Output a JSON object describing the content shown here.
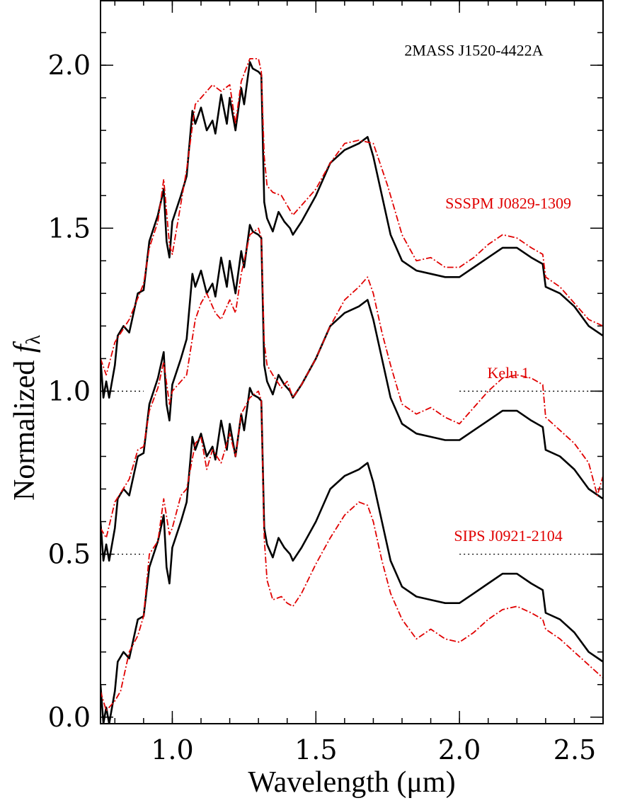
{
  "chart_data": {
    "type": "line",
    "title": "",
    "xlabel": "Wavelength (μm)",
    "ylabel_main": "Normalized ",
    "ylabel_f": "f",
    "ylabel_sub": "λ",
    "xlim": [
      0.75,
      2.5
    ],
    "ylim": [
      -0.02,
      2.2
    ],
    "grid": false,
    "x_ticks": [
      1.0,
      1.5,
      2.0,
      2.5
    ],
    "x_tick_labels": [
      "1.0",
      "1.5",
      "2.0",
      "2.5"
    ],
    "y_ticks": [
      0.0,
      0.5,
      1.0,
      1.5,
      2.0
    ],
    "y_tick_labels": [
      "0.0",
      "0.5",
      "1.0",
      "1.5",
      "2.0"
    ],
    "x_minor_step": 0.1,
    "y_minor_step": 0.1,
    "annotations": [
      {
        "text": "2MASS J1520-4422A",
        "x": 2.05,
        "y": 2.03,
        "color": "#000000"
      },
      {
        "text": "SSSPM J0829-1309",
        "x": 2.17,
        "y": 1.56,
        "color": "#e00000"
      },
      {
        "text": "Kelu 1",
        "x": 2.17,
        "y": 1.04,
        "color": "#e00000"
      },
      {
        "text": "SIPS J0921-2104",
        "x": 2.17,
        "y": 0.54,
        "color": "#e00000"
      }
    ],
    "baselines": [
      {
        "y": 1.0,
        "segments": [
          [
            0.75,
            0.9
          ],
          [
            2.0,
            2.5
          ]
        ]
      },
      {
        "y": 0.5,
        "segments": [
          [
            0.75,
            0.9
          ],
          [
            2.0,
            2.5
          ]
        ]
      },
      {
        "y": -0.02,
        "segments": [
          [
            0.75,
            2.5
          ]
        ]
      }
    ],
    "series": [
      {
        "color": "#000000",
        "style": "solid",
        "x": [
          0.75,
          0.76,
          0.77,
          0.78,
          0.8,
          0.81,
          0.83,
          0.85,
          0.88,
          0.9,
          0.92,
          0.95,
          0.97,
          0.98,
          0.99,
          1.0,
          1.03,
          1.05,
          1.07,
          1.08,
          1.1,
          1.12,
          1.14,
          1.15,
          1.17,
          1.19,
          1.2,
          1.22,
          1.24,
          1.25,
          1.27,
          1.28,
          1.3,
          1.31,
          1.32,
          1.33,
          1.35,
          1.37,
          1.39,
          1.41,
          1.42,
          1.45,
          1.5,
          1.55,
          1.6,
          1.65,
          1.68,
          1.7,
          1.73,
          1.76,
          1.8,
          1.85,
          1.9,
          1.95,
          2.0,
          2.05,
          2.1,
          2.15,
          2.2,
          2.25,
          2.29,
          2.3,
          2.35,
          2.4,
          2.45,
          2.5
        ],
        "y": [
          0.1,
          -0.02,
          0.03,
          -0.02,
          0.08,
          0.17,
          0.2,
          0.18,
          0.3,
          0.31,
          0.46,
          0.54,
          0.62,
          0.46,
          0.41,
          0.52,
          0.6,
          0.66,
          0.86,
          0.82,
          0.87,
          0.8,
          0.83,
          0.79,
          0.91,
          0.82,
          0.9,
          0.8,
          0.93,
          0.88,
          1.01,
          0.99,
          0.98,
          0.97,
          0.58,
          0.53,
          0.49,
          0.55,
          0.52,
          0.5,
          0.48,
          0.52,
          0.6,
          0.7,
          0.74,
          0.76,
          0.78,
          0.72,
          0.6,
          0.48,
          0.4,
          0.37,
          0.36,
          0.35,
          0.35,
          0.38,
          0.41,
          0.44,
          0.44,
          0.41,
          0.39,
          0.32,
          0.3,
          0.26,
          0.2,
          0.17
        ],
        "offsets": [
          0,
          0.5,
          1.0
        ]
      },
      {
        "color": "#e00000",
        "style": "dash-dot",
        "name": "SSSPM J0829-1309",
        "x": [
          0.75,
          0.77,
          0.8,
          0.85,
          0.9,
          0.92,
          0.95,
          0.97,
          0.99,
          1.0,
          1.05,
          1.08,
          1.1,
          1.14,
          1.17,
          1.2,
          1.22,
          1.24,
          1.27,
          1.3,
          1.31,
          1.32,
          1.33,
          1.35,
          1.38,
          1.4,
          1.42,
          1.45,
          1.5,
          1.55,
          1.6,
          1.65,
          1.7,
          1.75,
          1.8,
          1.85,
          1.9,
          1.95,
          2.0,
          2.05,
          2.1,
          2.15,
          2.2,
          2.25,
          2.29,
          2.3,
          2.35,
          2.4,
          2.45,
          2.5
        ],
        "y": [
          1.1,
          1.05,
          1.15,
          1.22,
          1.33,
          1.44,
          1.52,
          1.65,
          1.45,
          1.42,
          1.68,
          1.88,
          1.9,
          1.94,
          1.92,
          1.94,
          1.82,
          1.95,
          2.02,
          2.02,
          1.98,
          1.72,
          1.63,
          1.61,
          1.6,
          1.57,
          1.54,
          1.57,
          1.62,
          1.7,
          1.76,
          1.77,
          1.76,
          1.63,
          1.48,
          1.4,
          1.41,
          1.38,
          1.38,
          1.41,
          1.45,
          1.48,
          1.47,
          1.44,
          1.42,
          1.35,
          1.32,
          1.27,
          1.22,
          1.2
        ]
      },
      {
        "color": "#e00000",
        "style": "dash-dot",
        "name": "Kelu 1",
        "x": [
          0.75,
          0.77,
          0.8,
          0.85,
          0.88,
          0.9,
          0.92,
          0.95,
          0.97,
          0.99,
          1.0,
          1.05,
          1.08,
          1.1,
          1.12,
          1.15,
          1.17,
          1.2,
          1.22,
          1.24,
          1.27,
          1.3,
          1.31,
          1.32,
          1.33,
          1.35,
          1.38,
          1.4,
          1.42,
          1.45,
          1.5,
          1.55,
          1.6,
          1.65,
          1.68,
          1.7,
          1.73,
          1.76,
          1.8,
          1.85,
          1.9,
          1.95,
          2.0,
          2.05,
          2.1,
          2.15,
          2.2,
          2.25,
          2.29,
          2.3,
          2.35,
          2.4,
          2.45,
          2.48,
          2.5
        ],
        "y": [
          0.58,
          0.55,
          0.66,
          0.73,
          0.82,
          0.83,
          0.94,
          1.01,
          1.09,
          0.96,
          1.0,
          1.05,
          1.22,
          1.27,
          1.3,
          1.24,
          1.22,
          1.28,
          1.24,
          1.36,
          1.48,
          1.5,
          1.47,
          1.15,
          1.08,
          1.05,
          1.01,
          1.03,
          0.98,
          1.02,
          1.1,
          1.2,
          1.28,
          1.32,
          1.35,
          1.3,
          1.18,
          1.08,
          0.96,
          0.93,
          0.95,
          0.92,
          0.9,
          0.95,
          1.0,
          1.04,
          1.05,
          1.04,
          1.02,
          0.92,
          0.88,
          0.84,
          0.78,
          0.68,
          0.74
        ]
      },
      {
        "color": "#e00000",
        "style": "dash-dot",
        "name": "SIPS J0921-2104",
        "x": [
          0.75,
          0.77,
          0.8,
          0.82,
          0.85,
          0.88,
          0.9,
          0.92,
          0.95,
          0.97,
          0.99,
          1.0,
          1.03,
          1.05,
          1.08,
          1.1,
          1.12,
          1.14,
          1.17,
          1.2,
          1.22,
          1.24,
          1.27,
          1.3,
          1.31,
          1.32,
          1.33,
          1.35,
          1.38,
          1.4,
          1.42,
          1.45,
          1.5,
          1.55,
          1.6,
          1.65,
          1.68,
          1.7,
          1.73,
          1.76,
          1.8,
          1.85,
          1.9,
          1.95,
          2.0,
          2.05,
          2.1,
          2.15,
          2.2,
          2.25,
          2.29,
          2.3,
          2.35,
          2.4,
          2.45,
          2.5
        ],
        "y": [
          0.08,
          0.02,
          0.05,
          0.08,
          0.2,
          0.25,
          0.31,
          0.5,
          0.54,
          0.67,
          0.56,
          0.58,
          0.68,
          0.7,
          0.84,
          0.86,
          0.76,
          0.82,
          0.78,
          0.87,
          0.8,
          0.93,
          0.98,
          1.0,
          0.97,
          0.55,
          0.42,
          0.36,
          0.37,
          0.35,
          0.34,
          0.38,
          0.47,
          0.55,
          0.62,
          0.66,
          0.65,
          0.6,
          0.48,
          0.38,
          0.3,
          0.24,
          0.27,
          0.24,
          0.23,
          0.26,
          0.3,
          0.33,
          0.34,
          0.32,
          0.3,
          0.27,
          0.24,
          0.2,
          0.16,
          0.12
        ]
      }
    ]
  }
}
